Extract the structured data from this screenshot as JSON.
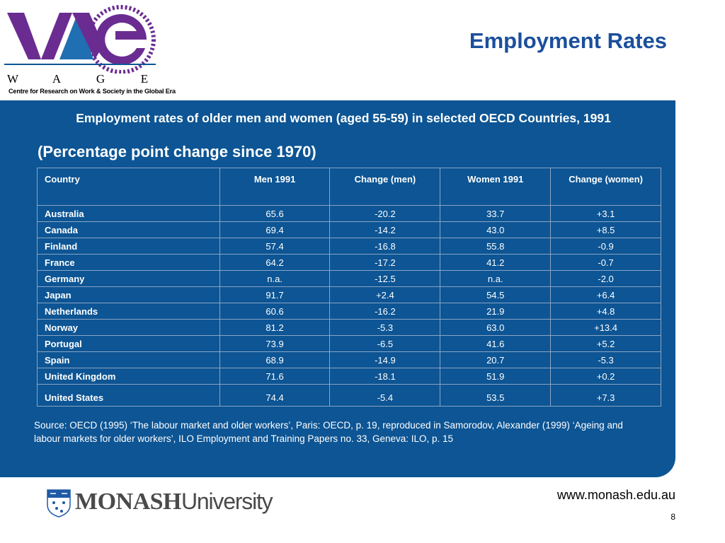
{
  "header": {
    "title": "Employment Rates",
    "logo": {
      "letters": [
        "W",
        "A",
        "G",
        "E"
      ],
      "tagline": "Centre for Research on Work & Society in the Global Era"
    }
  },
  "main": {
    "subtitle": "Employment rates of older men and women (aged 55-59) in selected OECD Countries, 1991",
    "subtitle2": "(Percentage point change since 1970)",
    "table": {
      "columns": [
        "Country",
        "Men 1991",
        "Change (men)",
        "Women 1991",
        "Change (women)"
      ],
      "rows": [
        [
          "Australia",
          "65.6",
          "-20.2",
          "33.7",
          "+3.1"
        ],
        [
          "Canada",
          "69.4",
          "-14.2",
          "43.0",
          "+8.5"
        ],
        [
          "Finland",
          "57.4",
          "-16.8",
          "55.8",
          "-0.9"
        ],
        [
          "France",
          "64.2",
          "-17.2",
          "41.2",
          "-0.7"
        ],
        [
          "Germany",
          "n.a.",
          "-12.5",
          "n.a.",
          "-2.0"
        ],
        [
          "Japan",
          "91.7",
          "+2.4",
          "54.5",
          "+6.4"
        ],
        [
          "Netherlands",
          "60.6",
          "-16.2",
          "21.9",
          "+4.8"
        ],
        [
          "Norway",
          "81.2",
          "-5.3",
          "63.0",
          "+13.4"
        ],
        [
          "Portugal",
          "73.9",
          "-6.5",
          "41.6",
          "+5.2"
        ],
        [
          "Spain",
          "68.9",
          "-14.9",
          "20.7",
          "-5.3"
        ],
        [
          "United Kingdom",
          "71.6",
          "-18.1",
          "51.9",
          "+0.2"
        ],
        [
          "United States",
          "74.4",
          "-5.4",
          "53.5",
          "+7.3"
        ]
      ]
    },
    "source": "Source: OECD (1995) ‘The labour market and older workers’, Paris: OECD, p. 19, reproduced in Samorodov, Alexander (1999) ‘Ageing and labour markets for older workers’, ILO Employment and Training Papers no. 33, Geneva: ILO, p. 15"
  },
  "footer": {
    "brand_bold": "MONASH",
    "brand_regular": "University",
    "url": "www.monash.edu.au",
    "page_number": "8"
  },
  "colors": {
    "panel": "#0d5594",
    "title": "#1b4f9c",
    "logo_purple": "#6a2c91",
    "logo_blue": "#1f6fb2"
  }
}
